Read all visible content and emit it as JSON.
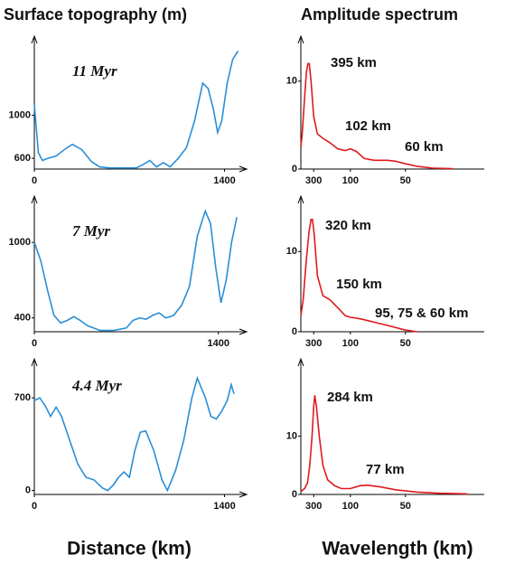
{
  "left_title": "Surface topography (m)",
  "right_title": "Amplitude spectrum",
  "left_xlabel": "Distance (km)",
  "right_xlabel": "Wavelength (km)",
  "chart_data": [
    {
      "type": "line",
      "color": "#2a8fd6",
      "annotations": [
        "11 Myr"
      ],
      "x": [
        0,
        30,
        60,
        100,
        160,
        220,
        280,
        350,
        420,
        480,
        560,
        650,
        750,
        800,
        850,
        900,
        950,
        1000,
        1060,
        1120,
        1180,
        1240,
        1280,
        1320,
        1350,
        1380,
        1420,
        1460,
        1500
      ],
      "values": [
        1100,
        650,
        580,
        600,
        620,
        680,
        730,
        680,
        570,
        520,
        510,
        510,
        510,
        540,
        580,
        520,
        560,
        520,
        600,
        700,
        950,
        1300,
        1250,
        1050,
        840,
        950,
        1300,
        1520,
        1600
      ],
      "xlim": [
        0,
        1510
      ],
      "ylim": [
        500,
        1670
      ],
      "xticks": [
        0,
        1400
      ],
      "yticks": [
        600,
        1000
      ]
    },
    {
      "type": "line",
      "color": "#e0191d",
      "xscale": "reciprocal",
      "annotations": [
        "395 km",
        "102 km",
        "60 km"
      ],
      "x": [
        1000,
        800,
        600,
        500,
        440,
        395,
        350,
        300,
        250,
        200,
        160,
        130,
        110,
        100,
        90,
        80,
        70,
        60,
        55,
        50,
        45,
        40,
        35
      ],
      "values": [
        2.5,
        4,
        8,
        11,
        12,
        12,
        10,
        6,
        4,
        3.5,
        3,
        2.3,
        2.1,
        2.3,
        2,
        1.2,
        1,
        1,
        0.9,
        0.6,
        0.3,
        0.1,
        0.05
      ],
      "xlim": [
        1000,
        30
      ],
      "ylim": [
        0,
        14.3
      ],
      "xticks": [
        300,
        100,
        50
      ],
      "yticks": [
        0,
        10
      ]
    },
    {
      "type": "line",
      "color": "#2a8fd6",
      "annotations": [
        "7 Myr"
      ],
      "x": [
        0,
        50,
        100,
        150,
        200,
        250,
        300,
        350,
        400,
        500,
        600,
        700,
        750,
        800,
        850,
        900,
        950,
        1000,
        1060,
        1120,
        1180,
        1240,
        1300,
        1340,
        1380,
        1420,
        1460,
        1500,
        1540
      ],
      "values": [
        1000,
        850,
        620,
        420,
        360,
        380,
        410,
        380,
        340,
        300,
        300,
        320,
        380,
        400,
        390,
        420,
        440,
        400,
        420,
        500,
        650,
        1050,
        1250,
        1150,
        800,
        520,
        700,
        1000,
        1200
      ],
      "xlim": [
        0,
        1560
      ],
      "ylim": [
        290,
        1310
      ],
      "xticks": [
        0,
        1400
      ],
      "yticks": [
        400,
        1000
      ]
    },
    {
      "type": "line",
      "color": "#e0191d",
      "xscale": "reciprocal",
      "annotations": [
        "320 km",
        "150 km",
        "95, 75 & 60  km"
      ],
      "x": [
        1000,
        700,
        500,
        400,
        350,
        320,
        290,
        250,
        200,
        160,
        130,
        110,
        100,
        90,
        80,
        70,
        60,
        50,
        45
      ],
      "values": [
        2,
        4,
        9,
        12.5,
        14,
        14,
        12,
        7,
        4.5,
        4,
        3,
        2,
        1.8,
        1.7,
        1.5,
        1.2,
        0.8,
        0.2,
        0
      ],
      "xlim": [
        1000,
        30
      ],
      "ylim": [
        0,
        16
      ],
      "xticks": [
        300,
        100,
        50
      ],
      "yticks": [
        0,
        10
      ]
    },
    {
      "type": "line",
      "color": "#2a8fd6",
      "annotations": [
        "4.4 Myr"
      ],
      "x": [
        0,
        40,
        80,
        120,
        160,
        200,
        260,
        320,
        380,
        440,
        500,
        540,
        580,
        620,
        660,
        700,
        740,
        780,
        820,
        880,
        940,
        980,
        1040,
        1100,
        1160,
        1200,
        1260,
        1300,
        1340,
        1380,
        1420,
        1450,
        1470
      ],
      "values": [
        680,
        700,
        640,
        560,
        630,
        560,
        380,
        200,
        100,
        80,
        20,
        0,
        40,
        100,
        140,
        100,
        300,
        440,
        450,
        300,
        80,
        0,
        150,
        380,
        700,
        850,
        700,
        560,
        540,
        600,
        680,
        800,
        730
      ],
      "xlim": [
        0,
        1510
      ],
      "ylim": [
        -30,
        940
      ],
      "xticks": [
        0,
        1400
      ],
      "yticks": [
        0,
        700
      ]
    },
    {
      "type": "line",
      "color": "#e0191d",
      "xscale": "reciprocal",
      "annotations": [
        "284 km",
        "77 km"
      ],
      "x": [
        1000,
        600,
        450,
        380,
        330,
        300,
        284,
        260,
        230,
        200,
        170,
        140,
        120,
        100,
        85,
        77,
        65,
        55,
        45,
        38,
        32
      ],
      "values": [
        0.5,
        1,
        2,
        5,
        10,
        15,
        17,
        15,
        10,
        5,
        2.5,
        1.5,
        1,
        1,
        1.5,
        1.6,
        1.3,
        0.8,
        0.4,
        0.2,
        0.1
      ],
      "xlim": [
        1000,
        30
      ],
      "ylim": [
        0,
        22
      ],
      "xticks": [
        300,
        100,
        50
      ],
      "yticks": [
        0,
        10
      ]
    }
  ]
}
